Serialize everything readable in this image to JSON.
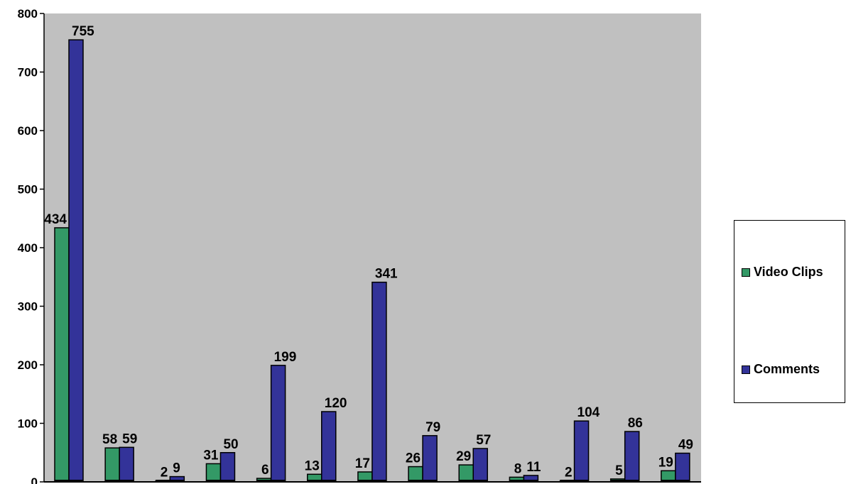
{
  "chart_data": {
    "type": "bar",
    "categories": [
      "",
      "",
      "",
      "",
      "",
      "",
      "",
      "",
      "",
      "",
      "",
      "",
      ""
    ],
    "series": [
      {
        "name": "Video Clips",
        "values": [
          434,
          58,
          2,
          31,
          6,
          13,
          17,
          26,
          29,
          8,
          2,
          5,
          19
        ]
      },
      {
        "name": "Comments",
        "values": [
          755,
          59,
          9,
          50,
          199,
          120,
          341,
          79,
          57,
          11,
          104,
          86,
          49
        ]
      }
    ],
    "ylim": [
      0,
      800
    ],
    "yticks": [
      "0",
      "100",
      "200",
      "300",
      "400",
      "500",
      "600",
      "700",
      "800"
    ],
    "grid": false,
    "legend_position": "right",
    "title": "",
    "xlabel": "",
    "ylabel": ""
  },
  "colors": {
    "plot_area": "#c0c0c0",
    "video_clips": "#339966",
    "comments": "#333399"
  },
  "legend": {
    "video_clips": "Video Clips",
    "comments": "Comments"
  }
}
